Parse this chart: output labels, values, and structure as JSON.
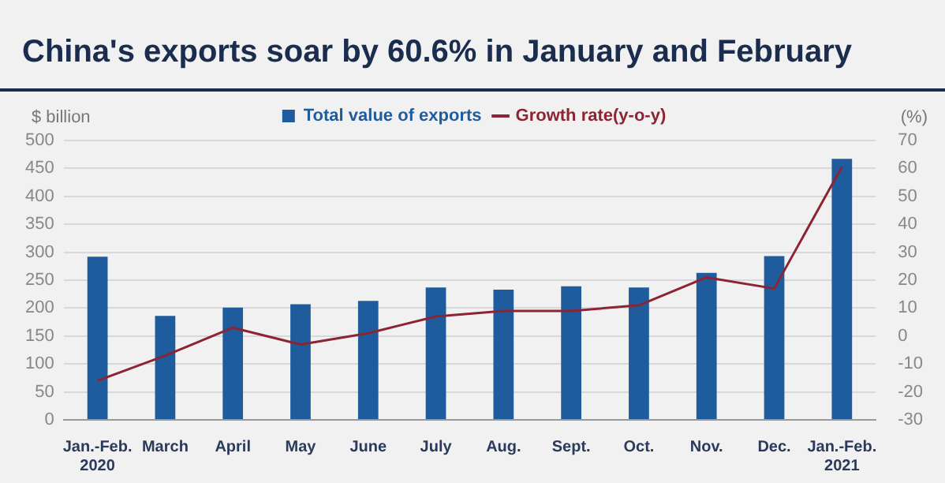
{
  "chart_data": {
    "type": "bar",
    "title": "China's exports soar by 60.6% in January and February",
    "ylabel": "$ billion",
    "y2label": "(%)",
    "categories": [
      "Jan.-Feb.\n2020",
      "March",
      "April",
      "May",
      "June",
      "July",
      "Aug.",
      "Sept.",
      "Oct.",
      "Nov.",
      "Dec.",
      "Jan.-Feb.\n2021"
    ],
    "series": [
      {
        "name": "Total value of exports",
        "color": "#1f5c9e",
        "values": [
          292,
          186,
          201,
          207,
          213,
          237,
          233,
          239,
          237,
          263,
          293,
          467
        ]
      },
      {
        "name": "Growth rate(y-o-y)",
        "type": "line",
        "axis": "y2",
        "color": "#8c2433",
        "values": [
          -16,
          -7,
          3,
          -3,
          1,
          7,
          9,
          9,
          11,
          21,
          17,
          60.6
        ]
      }
    ],
    "ylim": [
      0,
      500
    ],
    "yticks": [
      0,
      50,
      100,
      150,
      200,
      250,
      300,
      350,
      400,
      450,
      500
    ],
    "y2lim": [
      -30,
      70
    ],
    "y2ticks": [
      -30,
      -20,
      -10,
      0,
      10,
      20,
      30,
      40,
      50,
      60,
      70
    ],
    "grid": "y",
    "legend": "top",
    "marker": "none"
  }
}
